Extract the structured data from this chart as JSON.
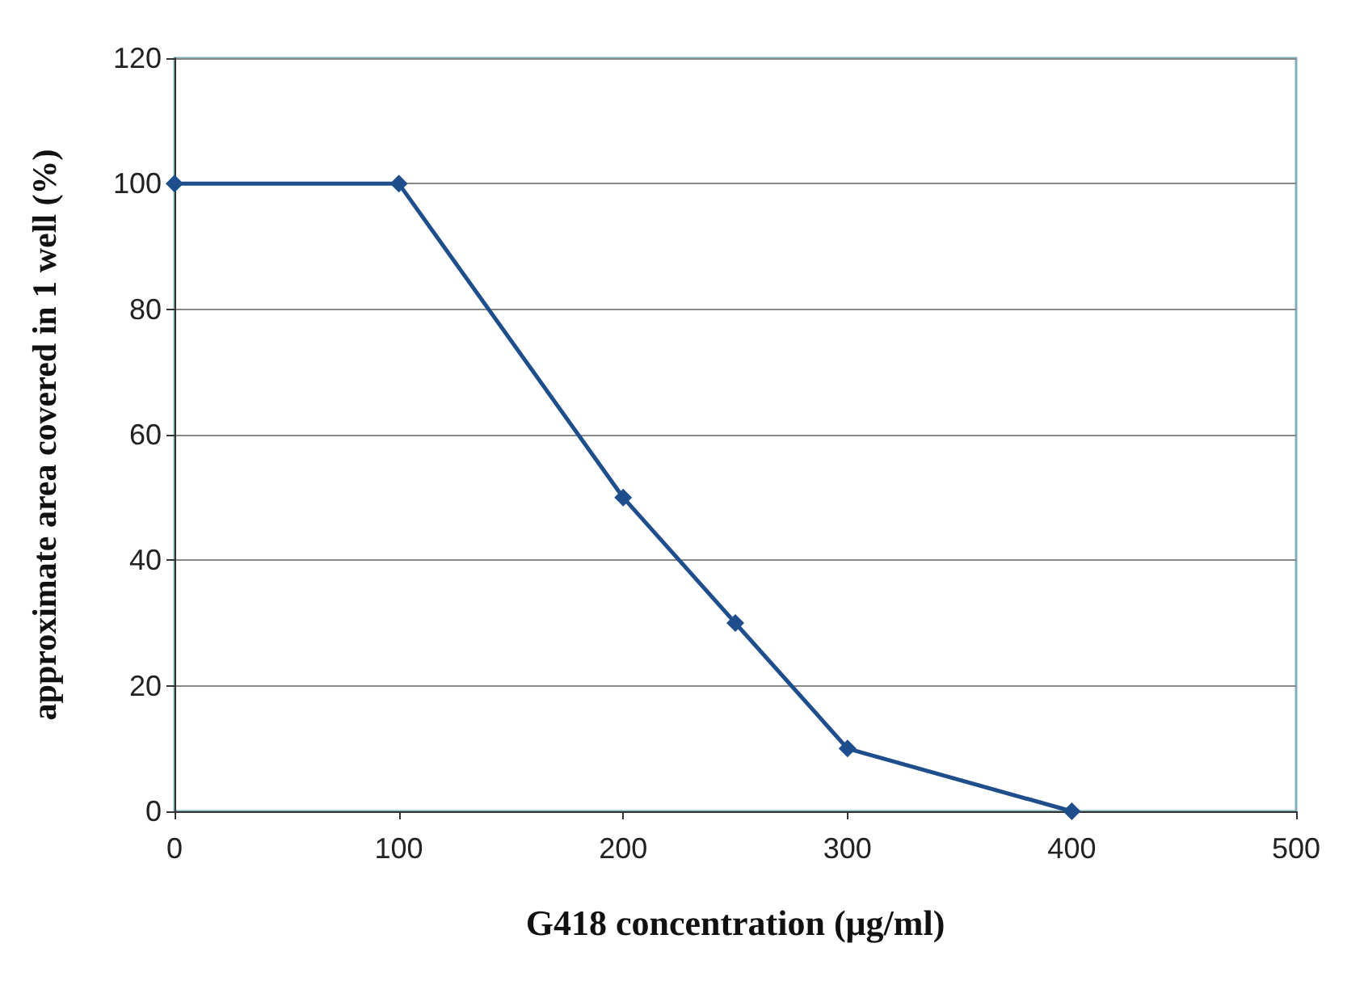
{
  "chart_data": {
    "type": "line",
    "xlabel": "G418 concentration (μg/ml)",
    "ylabel": "approximate area covered in 1 well (%)",
    "x": [
      0,
      100,
      200,
      250,
      300,
      400
    ],
    "series": [
      {
        "color": "#1f4e8c",
        "values": [
          100,
          100,
          50,
          30,
          10,
          0
        ]
      }
    ],
    "xlim": [
      0,
      500
    ],
    "xticks": [
      0,
      100,
      200,
      300,
      400,
      500
    ],
    "ylim": [
      0,
      120
    ],
    "yticks": [
      0,
      20,
      40,
      60,
      80,
      100,
      120
    ],
    "grid": "y",
    "marker": "diamond",
    "line_style": "solid"
  }
}
